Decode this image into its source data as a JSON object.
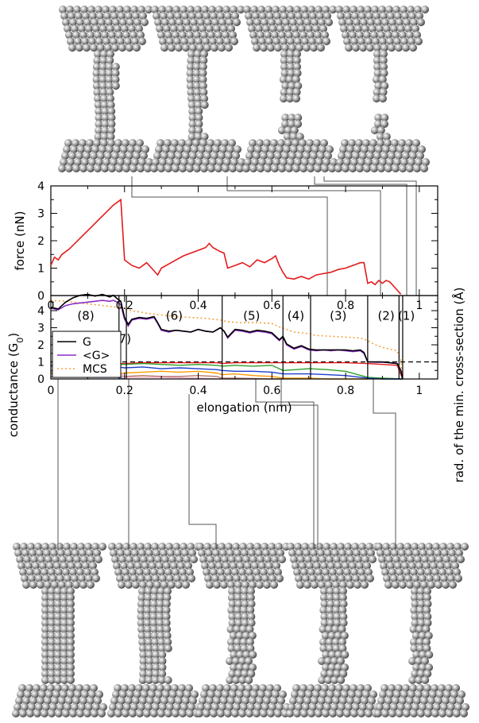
{
  "chart_data": [
    {
      "type": "line",
      "ylabel": "force (nN)",
      "xlim": [
        0,
        1.05
      ],
      "ylim": [
        0,
        4
      ],
      "x_ticks": [
        "0",
        "0.2",
        "0.4",
        "0.6",
        "0.8",
        "1"
      ],
      "y_ticks": [
        "0",
        "1",
        "2",
        "3",
        "4"
      ],
      "colors": {
        "force": "#e41a1c"
      },
      "series": [
        {
          "x": [
            0,
            0.01,
            0.02,
            0.03,
            0.05,
            0.08,
            0.11,
            0.14,
            0.17,
            0.19,
            0.2,
            0.22,
            0.24,
            0.26,
            0.28,
            0.29,
            0.3,
            0.32,
            0.34,
            0.36,
            0.38,
            0.4,
            0.42,
            0.43,
            0.44,
            0.46,
            0.47,
            0.48,
            0.5,
            0.52,
            0.54,
            0.56,
            0.58,
            0.6,
            0.61,
            0.62,
            0.63,
            0.64,
            0.66,
            0.68,
            0.7,
            0.72,
            0.74,
            0.76,
            0.78,
            0.8,
            0.82,
            0.84,
            0.85,
            0.86,
            0.87,
            0.88,
            0.89,
            0.9,
            0.91,
            0.92,
            0.93,
            0.94,
            0.95
          ],
          "y": [
            1.1,
            1.4,
            1.3,
            1.5,
            1.7,
            2.1,
            2.5,
            2.9,
            3.3,
            3.5,
            1.3,
            1.1,
            1.0,
            1.2,
            0.9,
            0.75,
            1.0,
            1.15,
            1.3,
            1.45,
            1.55,
            1.65,
            1.75,
            1.9,
            1.75,
            1.6,
            1.55,
            1.0,
            1.1,
            1.2,
            1.05,
            1.3,
            1.2,
            1.35,
            1.45,
            1.1,
            0.85,
            0.65,
            0.6,
            0.7,
            0.6,
            0.75,
            0.8,
            0.85,
            0.95,
            1.0,
            1.1,
            1.2,
            1.2,
            0.45,
            0.5,
            0.4,
            0.55,
            0.45,
            0.55,
            0.5,
            0.35,
            0.2,
            0.05
          ]
        }
      ],
      "markers": [
        0.745,
        0.885,
        0.975,
        0.99
      ]
    },
    {
      "type": "line",
      "ylabel": "conductance (G",
      "ylabel_sub": "0",
      "ylabel_end": ")",
      "y2label": "rad. of the min. cross-section (Å)",
      "xlabel": "elongation (nm)",
      "xlim": [
        0,
        1.05
      ],
      "ylim": [
        0,
        5
      ],
      "x_ticks": [
        "0",
        "0.2",
        "0.4",
        "0.6",
        "0.8",
        "1"
      ],
      "top_x_ticks": [
        "0",
        "0.2",
        "0.4",
        "0.6",
        "0.8",
        "1"
      ],
      "y_ticks": [
        "0",
        "1",
        "2",
        "3",
        "4"
      ],
      "ballistic_line": 1,
      "region_boundaries": [
        0.185,
        0.205,
        0.465,
        0.63,
        0.705,
        0.86,
        0.945,
        0.955
      ],
      "regions": [
        {
          "label": "(8)",
          "x": 0.095,
          "y": 3.7
        },
        {
          "label": "(7)",
          "x": 0.195,
          "y": 2.35
        },
        {
          "label": "(6)",
          "x": 0.335,
          "y": 3.7
        },
        {
          "label": "(5)",
          "x": 0.545,
          "y": 3.7
        },
        {
          "label": "(4)",
          "x": 0.665,
          "y": 3.7
        },
        {
          "label": "(3)",
          "x": 0.78,
          "y": 3.7
        },
        {
          "label": "(2)",
          "x": 0.91,
          "y": 3.7
        },
        {
          "label": "(1)",
          "x": 0.965,
          "y": 3.7
        }
      ],
      "legend": [
        "G",
        "<G>",
        "MCS"
      ],
      "series": [
        {
          "name": "G",
          "color": "#000000",
          "dash": "none",
          "x": [
            0,
            0.02,
            0.04,
            0.06,
            0.08,
            0.1,
            0.12,
            0.14,
            0.16,
            0.17,
            0.18,
            0.19,
            0.2,
            0.21,
            0.22,
            0.24,
            0.26,
            0.28,
            0.29,
            0.3,
            0.32,
            0.34,
            0.36,
            0.38,
            0.4,
            0.42,
            0.44,
            0.46,
            0.47,
            0.48,
            0.5,
            0.52,
            0.54,
            0.56,
            0.58,
            0.6,
            0.62,
            0.63,
            0.64,
            0.66,
            0.68,
            0.7,
            0.72,
            0.74,
            0.76,
            0.78,
            0.8,
            0.82,
            0.84,
            0.85,
            0.86,
            0.88,
            0.9,
            0.92,
            0.94,
            0.95,
            0.955
          ],
          "y": [
            4.2,
            4.1,
            4.5,
            4.75,
            4.9,
            4.95,
            4.85,
            4.95,
            4.8,
            4.9,
            4.7,
            4.55,
            3.6,
            3.2,
            3.5,
            3.6,
            3.55,
            3.65,
            3.3,
            2.9,
            2.8,
            2.85,
            2.8,
            2.75,
            2.9,
            2.8,
            2.75,
            3.0,
            2.8,
            2.45,
            2.9,
            2.85,
            2.75,
            2.85,
            2.8,
            2.7,
            2.3,
            2.5,
            2.05,
            1.8,
            1.95,
            1.75,
            1.7,
            1.7,
            1.7,
            1.7,
            1.7,
            1.65,
            1.7,
            1.55,
            1.0,
            1.0,
            1.0,
            0.95,
            0.9,
            0.5,
            0.0
          ]
        },
        {
          "name": "<G>",
          "color": "#8b2fc9",
          "dash": "none",
          "x": [
            0,
            0.02,
            0.04,
            0.06,
            0.08,
            0.1,
            0.12,
            0.14,
            0.16,
            0.17,
            0.18,
            0.19,
            0.2,
            0.21,
            0.22,
            0.24,
            0.26,
            0.28,
            0.29,
            0.3,
            0.32,
            0.34,
            0.36,
            0.38,
            0.4,
            0.42,
            0.44,
            0.46,
            0.47,
            0.48,
            0.5,
            0.52,
            0.54,
            0.56,
            0.58,
            0.6,
            0.62,
            0.63,
            0.64,
            0.66,
            0.68,
            0.7,
            0.72,
            0.74,
            0.76,
            0.78,
            0.8,
            0.82,
            0.84,
            0.85,
            0.86,
            0.88,
            0.9,
            0.92,
            0.94,
            0.95,
            0.955
          ],
          "y": [
            4.15,
            4.05,
            4.3,
            4.4,
            4.45,
            4.5,
            4.55,
            4.6,
            4.55,
            4.6,
            4.5,
            4.35,
            3.5,
            3.1,
            3.45,
            3.55,
            3.5,
            3.6,
            3.25,
            2.85,
            2.75,
            2.85,
            2.8,
            2.75,
            2.9,
            2.8,
            2.75,
            3.0,
            2.8,
            2.4,
            2.85,
            2.8,
            2.7,
            2.8,
            2.75,
            2.65,
            2.25,
            2.45,
            2.0,
            1.75,
            1.9,
            1.7,
            1.65,
            1.7,
            1.65,
            1.7,
            1.65,
            1.6,
            1.65,
            1.5,
            1.0,
            0.98,
            0.98,
            0.95,
            0.9,
            0.5,
            0.0
          ]
        },
        {
          "name": "MCS",
          "color": "#f4a340",
          "dash": "2,3",
          "x": [
            0,
            0.04,
            0.08,
            0.12,
            0.16,
            0.18,
            0.2,
            0.22,
            0.26,
            0.3,
            0.34,
            0.38,
            0.42,
            0.46,
            0.48,
            0.52,
            0.56,
            0.6,
            0.62,
            0.64,
            0.66,
            0.7,
            0.72,
            0.76,
            0.8,
            0.84,
            0.86,
            0.88,
            0.9,
            0.92,
            0.94,
            0.95,
            0.955
          ],
          "y": [
            4.6,
            4.55,
            4.45,
            4.35,
            4.25,
            4.2,
            4.1,
            4.0,
            3.85,
            3.75,
            3.65,
            3.6,
            3.55,
            3.45,
            3.35,
            3.3,
            3.3,
            3.25,
            3.05,
            2.9,
            2.75,
            2.65,
            2.55,
            2.5,
            2.45,
            2.4,
            2.25,
            2.0,
            1.85,
            1.75,
            1.65,
            1.1,
            0.0
          ]
        },
        {
          "color": "#e41a1c",
          "dash": "none",
          "x": [
            0,
            0.05,
            0.1,
            0.15,
            0.185,
            0.2,
            0.25,
            0.3,
            0.35,
            0.4,
            0.45,
            0.465,
            0.5,
            0.55,
            0.6,
            0.63,
            0.7,
            0.8,
            0.86,
            0.9,
            0.94,
            0.955
          ],
          "y": [
            0.8,
            0.85,
            0.9,
            0.95,
            0.9,
            0.9,
            0.95,
            0.95,
            0.95,
            0.95,
            0.95,
            0.9,
            0.95,
            0.95,
            0.95,
            0.95,
            0.95,
            0.95,
            0.9,
            0.85,
            0.8,
            0.0
          ]
        },
        {
          "color": "#2ca02c",
          "dash": "none",
          "x": [
            0,
            0.05,
            0.1,
            0.15,
            0.185,
            0.2,
            0.25,
            0.3,
            0.35,
            0.4,
            0.45,
            0.465,
            0.5,
            0.55,
            0.6,
            0.63,
            0.7,
            0.75,
            0.8,
            0.86,
            0.9,
            0.955
          ],
          "y": [
            0.85,
            0.9,
            0.95,
            0.9,
            0.85,
            0.85,
            0.9,
            0.85,
            0.8,
            0.85,
            0.8,
            0.75,
            0.8,
            0.75,
            0.8,
            0.5,
            0.6,
            0.55,
            0.45,
            0.1,
            0.05,
            0.0
          ]
        },
        {
          "color": "#1f3fcc",
          "dash": "none",
          "x": [
            0,
            0.05,
            0.1,
            0.15,
            0.185,
            0.2,
            0.25,
            0.3,
            0.35,
            0.4,
            0.45,
            0.465,
            0.5,
            0.55,
            0.6,
            0.63,
            0.7,
            0.75,
            0.8,
            0.86,
            0.9,
            0.955
          ],
          "y": [
            0.75,
            0.7,
            0.75,
            0.8,
            0.7,
            0.65,
            0.7,
            0.6,
            0.65,
            0.6,
            0.55,
            0.5,
            0.45,
            0.45,
            0.4,
            0.3,
            0.3,
            0.25,
            0.2,
            0.05,
            0.0,
            0.0
          ]
        },
        {
          "color": "#ff9a00",
          "dash": "none",
          "x": [
            0,
            0.05,
            0.1,
            0.15,
            0.185,
            0.2,
            0.25,
            0.3,
            0.35,
            0.4,
            0.45,
            0.465,
            0.5,
            0.55,
            0.6,
            0.63,
            0.7,
            0.75,
            0.86
          ],
          "y": [
            0.4,
            0.35,
            0.3,
            0.35,
            0.3,
            0.35,
            0.4,
            0.45,
            0.4,
            0.45,
            0.35,
            0.25,
            0.3,
            0.2,
            0.15,
            0.05,
            0.05,
            0.0,
            0.0
          ]
        },
        {
          "color": "#b87a6a",
          "dash": "none",
          "x": [
            0,
            0.05,
            0.1,
            0.15,
            0.185,
            0.2,
            0.25,
            0.3,
            0.35,
            0.4,
            0.45,
            0.465,
            0.5,
            0.6,
            0.63
          ],
          "y": [
            0.3,
            0.25,
            0.25,
            0.2,
            0.15,
            0.15,
            0.2,
            0.15,
            0.15,
            0.2,
            0.15,
            0.05,
            0.05,
            0.0,
            0.0
          ]
        },
        {
          "color": "#f0a8c8",
          "dash": "none",
          "x": [
            0,
            0.05,
            0.1,
            0.15,
            0.185,
            0.2,
            0.3,
            0.4,
            0.465
          ],
          "y": [
            0.85,
            0.6,
            0.5,
            0.6,
            0.4,
            0.1,
            0.1,
            0.05,
            0.0
          ]
        },
        {
          "color": "#5577dd",
          "dash": "none",
          "x": [
            0,
            0.05,
            0.1,
            0.15,
            0.185,
            0.2
          ],
          "y": [
            0.12,
            0.12,
            0.1,
            0.1,
            0.1,
            0.0
          ]
        }
      ],
      "markers": [
        0.005,
        0.185,
        0.38,
        0.55,
        0.655,
        0.82
      ]
    }
  ]
}
